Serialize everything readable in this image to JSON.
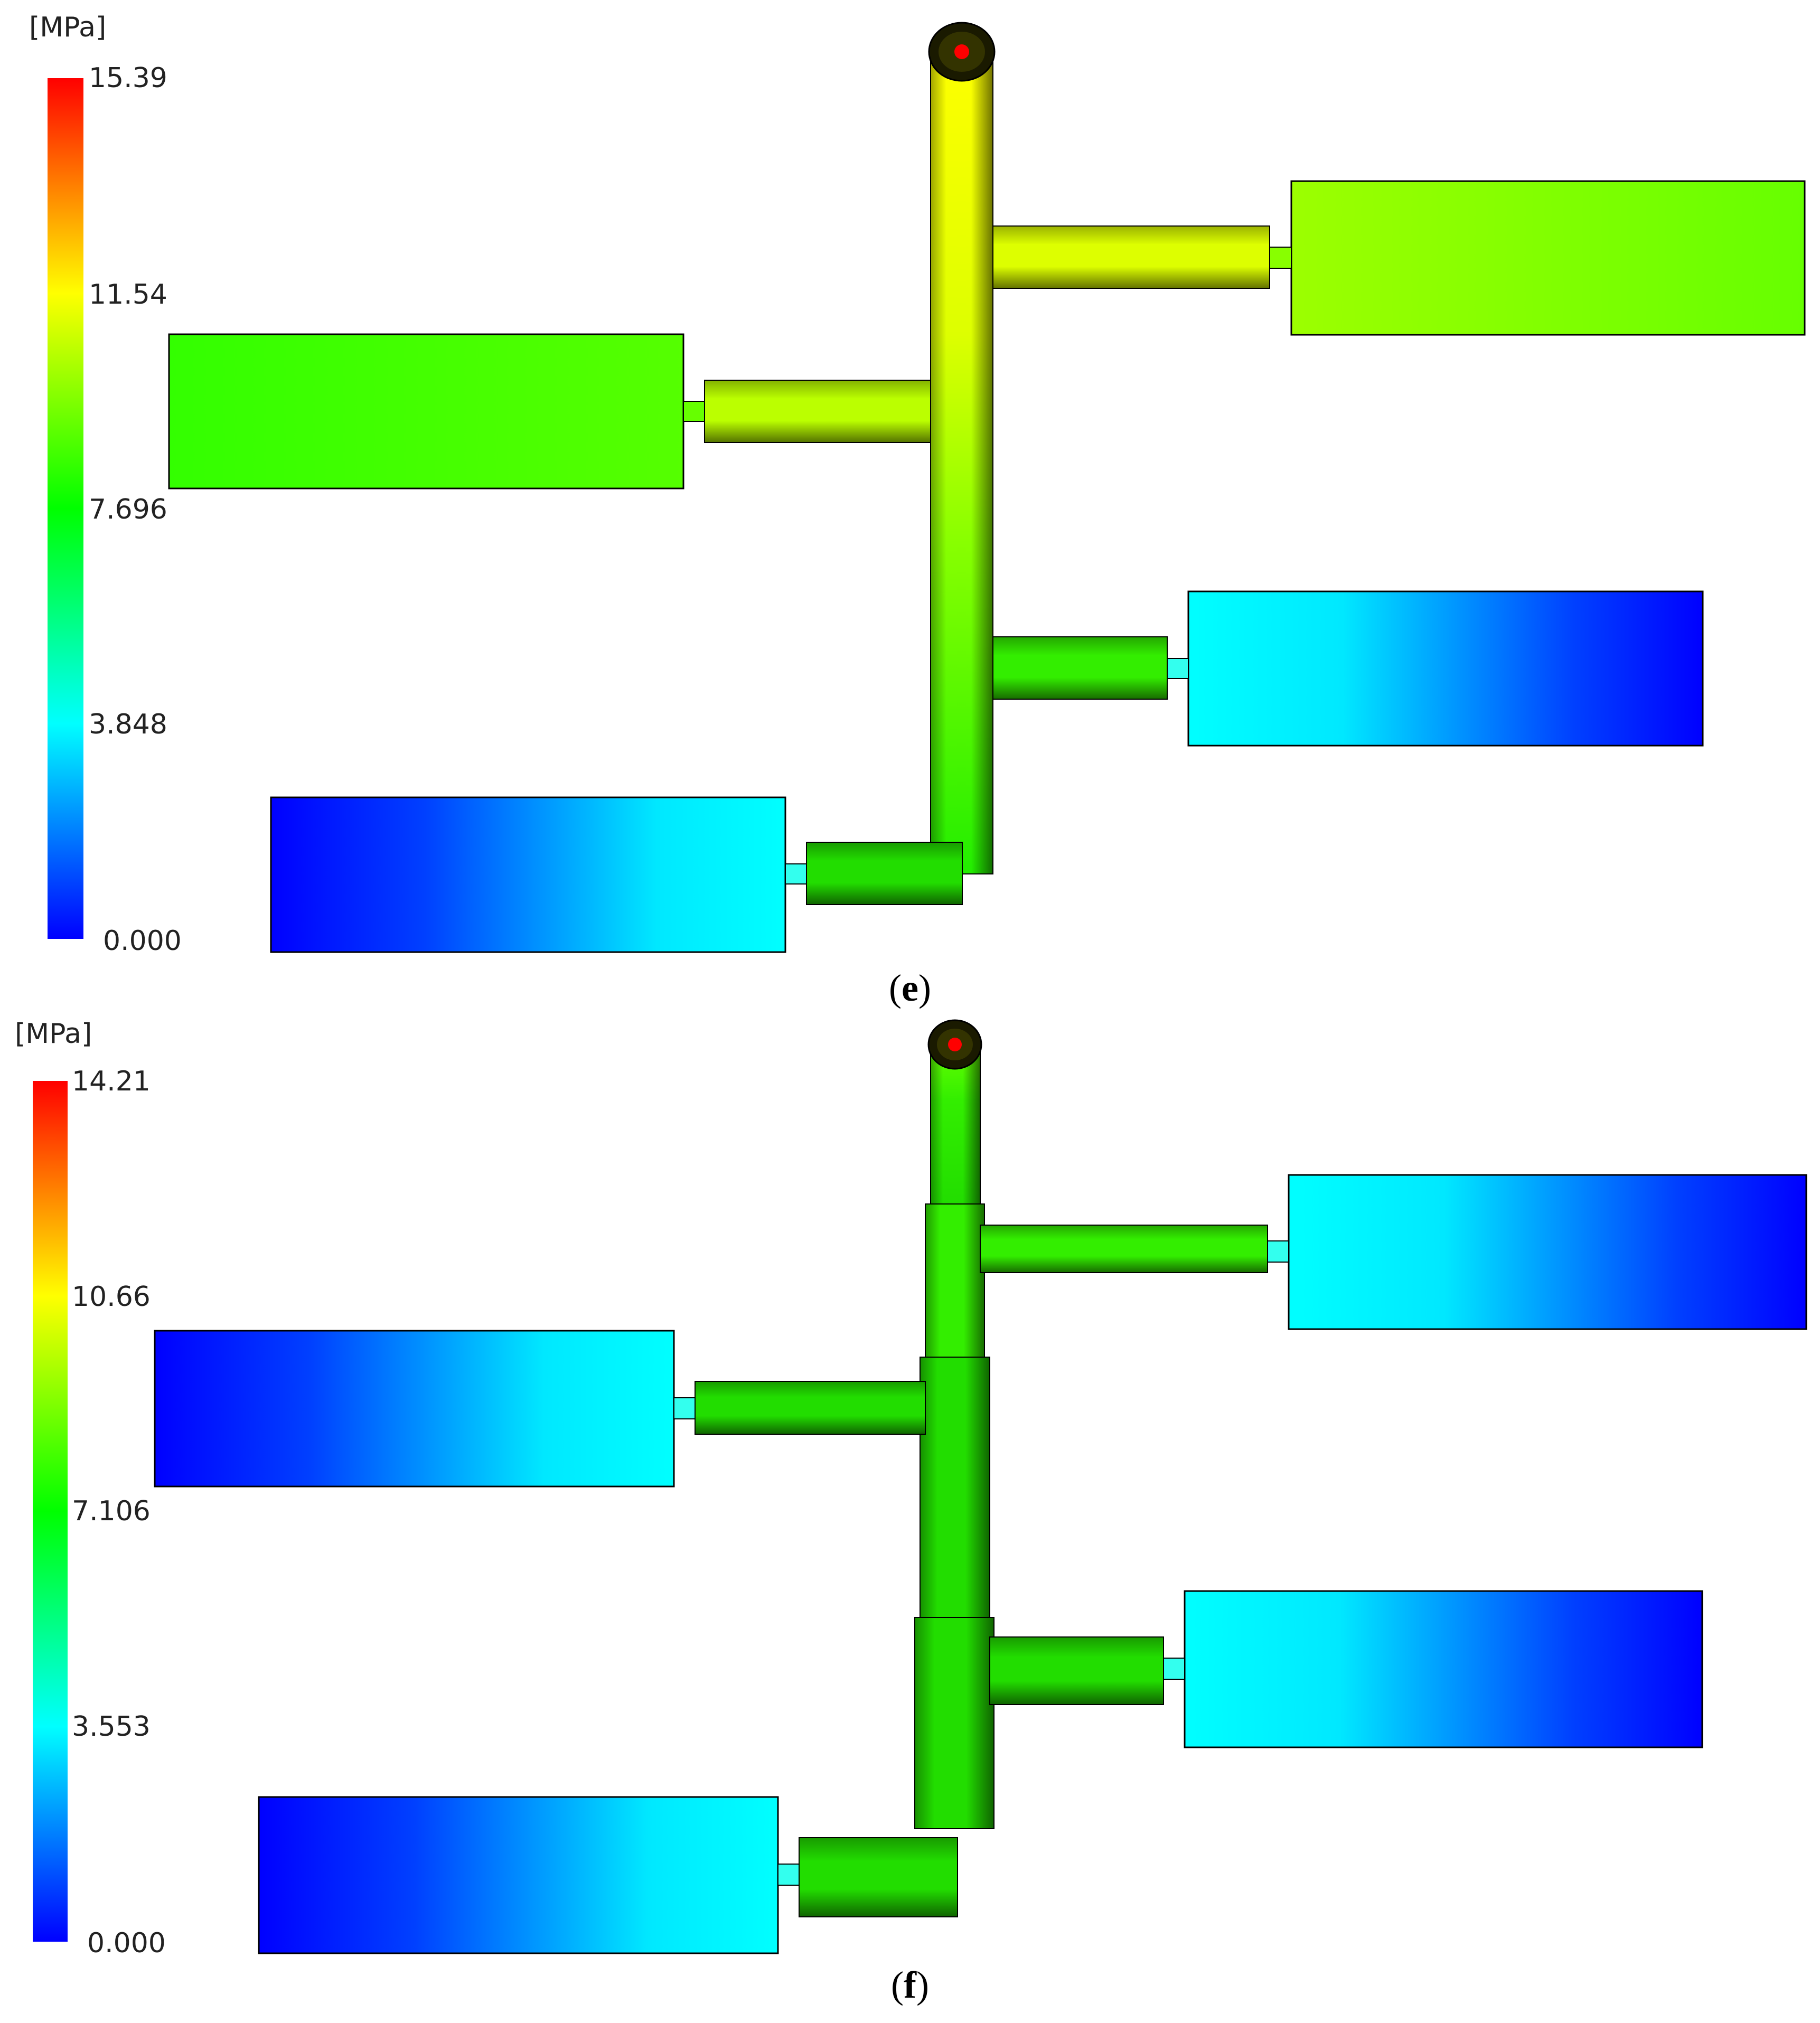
{
  "panels": [
    {
      "id": "e",
      "caption_letter": "e",
      "unit": "[MPa]",
      "ticks": [
        "15.39",
        "11.54",
        "7.696",
        "3.848",
        "0.000"
      ],
      "max_value": 15.39
    },
    {
      "id": "f",
      "caption_letter": "f",
      "unit": "[MPa]",
      "ticks": [
        "14.21",
        "10.66",
        "7.106",
        "3.553",
        "0.000"
      ],
      "max_value": 14.21
    }
  ],
  "colorscale": [
    "#0000ff",
    "#00ffff",
    "#00ff00",
    "#ffff00",
    "#ff0000"
  ],
  "colors": {
    "gate_marker": "#ff0000",
    "outline": "#000000"
  }
}
